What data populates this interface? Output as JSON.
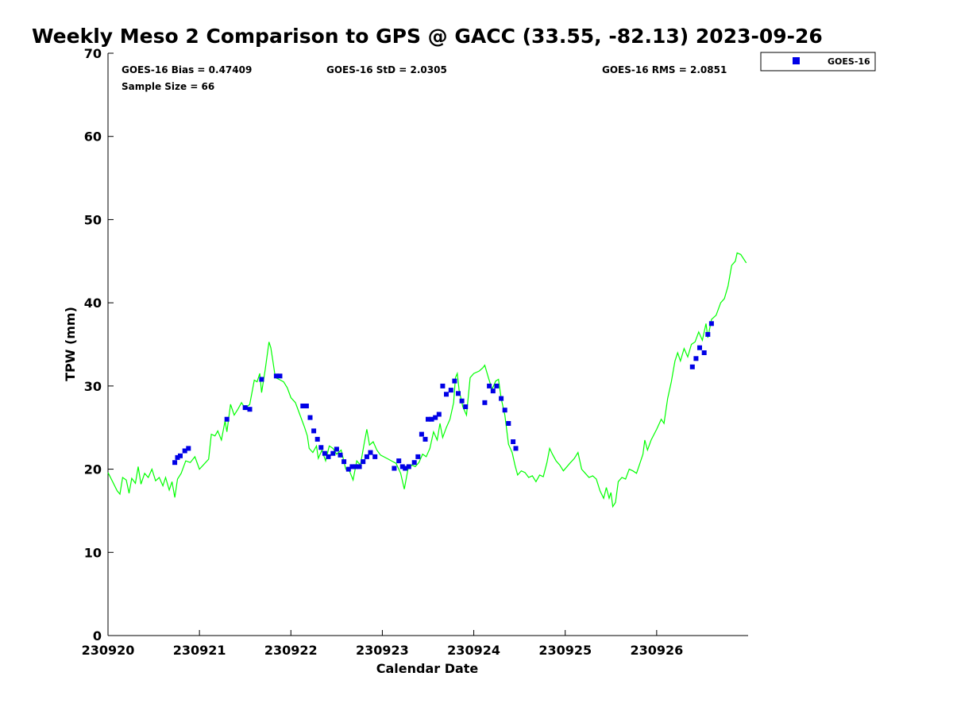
{
  "chart_data": {
    "type": "line",
    "title": "Weekly Meso 2 Comparison to GPS @ GACC (33.55, -82.13) 2023-09-26",
    "xlabel": "Calendar Date",
    "ylabel": "TPW (mm)",
    "ylim": [
      0,
      70
    ],
    "xlim": [
      "230920",
      "230927"
    ],
    "x_ticks": [
      "230920",
      "230921",
      "230922",
      "230923",
      "230924",
      "230925",
      "230926"
    ],
    "y_ticks": [
      0,
      10,
      20,
      30,
      40,
      50,
      60,
      70
    ],
    "grid": false,
    "legend_position": "top-right, outside",
    "stats": {
      "bias": "GOES-16 Bias = 0.47409",
      "std": "GOES-16 StD = 2.0305",
      "rms": "GOES-16 RMS = 2.0851",
      "sample": "Sample Size = 66"
    },
    "series": [
      {
        "kind": "line",
        "color": "#00ff00",
        "x_unit": "days after 2023-09-20 00:00 UTC",
        "points": [
          [
            0.0,
            19.6
          ],
          [
            0.05,
            18.5
          ],
          [
            0.1,
            17.4
          ],
          [
            0.13,
            17.0
          ],
          [
            0.16,
            19.0
          ],
          [
            0.2,
            18.7
          ],
          [
            0.23,
            17.1
          ],
          [
            0.26,
            18.9
          ],
          [
            0.3,
            18.3
          ],
          [
            0.33,
            20.3
          ],
          [
            0.36,
            18.2
          ],
          [
            0.4,
            19.5
          ],
          [
            0.44,
            19.0
          ],
          [
            0.48,
            20.0
          ],
          [
            0.52,
            18.6
          ],
          [
            0.56,
            19.0
          ],
          [
            0.6,
            18.0
          ],
          [
            0.63,
            19.0
          ],
          [
            0.67,
            17.5
          ],
          [
            0.7,
            18.5
          ],
          [
            0.73,
            16.6
          ],
          [
            0.76,
            18.8
          ],
          [
            0.8,
            19.5
          ],
          [
            0.85,
            21.0
          ],
          [
            0.9,
            20.8
          ],
          [
            0.95,
            21.5
          ],
          [
            1.0,
            20.0
          ],
          [
            1.05,
            20.6
          ],
          [
            1.1,
            21.2
          ],
          [
            1.13,
            24.2
          ],
          [
            1.17,
            24.0
          ],
          [
            1.2,
            24.6
          ],
          [
            1.24,
            23.5
          ],
          [
            1.28,
            25.8
          ],
          [
            1.3,
            24.5
          ],
          [
            1.34,
            27.8
          ],
          [
            1.38,
            26.5
          ],
          [
            1.42,
            27.2
          ],
          [
            1.46,
            28.0
          ],
          [
            1.5,
            27.3
          ],
          [
            1.55,
            27.8
          ],
          [
            1.6,
            30.7
          ],
          [
            1.63,
            30.5
          ],
          [
            1.66,
            31.5
          ],
          [
            1.68,
            29.2
          ],
          [
            1.72,
            32.0
          ],
          [
            1.76,
            35.3
          ],
          [
            1.78,
            34.6
          ],
          [
            1.8,
            33.2
          ],
          [
            1.83,
            31.0
          ],
          [
            1.87,
            30.8
          ],
          [
            1.92,
            30.5
          ],
          [
            1.96,
            29.8
          ],
          [
            2.0,
            28.6
          ],
          [
            2.05,
            28.0
          ],
          [
            2.1,
            26.5
          ],
          [
            2.15,
            25.0
          ],
          [
            2.18,
            24.0
          ],
          [
            2.2,
            22.5
          ],
          [
            2.24,
            22.0
          ],
          [
            2.28,
            22.8
          ],
          [
            2.3,
            21.3
          ],
          [
            2.34,
            22.3
          ],
          [
            2.38,
            21.0
          ],
          [
            2.42,
            22.8
          ],
          [
            2.46,
            22.5
          ],
          [
            2.5,
            21.8
          ],
          [
            2.55,
            22.3
          ],
          [
            2.6,
            20.0
          ],
          [
            2.64,
            19.8
          ],
          [
            2.68,
            18.7
          ],
          [
            2.72,
            21.0
          ],
          [
            2.76,
            20.5
          ],
          [
            2.8,
            23.0
          ],
          [
            2.83,
            24.8
          ],
          [
            2.86,
            22.9
          ],
          [
            2.9,
            23.3
          ],
          [
            2.94,
            22.3
          ],
          [
            2.98,
            21.7
          ],
          [
            3.05,
            21.3
          ],
          [
            3.1,
            21.0
          ],
          [
            3.15,
            20.7
          ],
          [
            3.2,
            19.5
          ],
          [
            3.24,
            17.6
          ],
          [
            3.28,
            20.0
          ],
          [
            3.32,
            20.5
          ],
          [
            3.36,
            20.3
          ],
          [
            3.4,
            20.8
          ],
          [
            3.44,
            21.8
          ],
          [
            3.48,
            21.5
          ],
          [
            3.52,
            22.5
          ],
          [
            3.56,
            24.5
          ],
          [
            3.6,
            23.5
          ],
          [
            3.63,
            25.5
          ],
          [
            3.66,
            23.8
          ],
          [
            3.7,
            25.0
          ],
          [
            3.74,
            26.0
          ],
          [
            3.78,
            28.0
          ],
          [
            3.8,
            31.0
          ],
          [
            3.82,
            31.5
          ],
          [
            3.84,
            29.5
          ],
          [
            3.88,
            27.5
          ],
          [
            3.92,
            26.5
          ],
          [
            3.96,
            31.0
          ],
          [
            4.0,
            31.5
          ],
          [
            4.06,
            31.8
          ],
          [
            4.1,
            32.2
          ],
          [
            4.12,
            32.5
          ],
          [
            4.16,
            31.0
          ],
          [
            4.2,
            29.6
          ],
          [
            4.24,
            30.6
          ],
          [
            4.27,
            30.8
          ],
          [
            4.3,
            28.5
          ],
          [
            4.34,
            26.5
          ],
          [
            4.38,
            23.0
          ],
          [
            4.42,
            22.0
          ],
          [
            4.45,
            20.5
          ],
          [
            4.48,
            19.3
          ],
          [
            4.52,
            19.8
          ],
          [
            4.56,
            19.6
          ],
          [
            4.6,
            19.0
          ],
          [
            4.64,
            19.2
          ],
          [
            4.68,
            18.5
          ],
          [
            4.72,
            19.3
          ],
          [
            4.76,
            19.1
          ],
          [
            4.8,
            20.8
          ],
          [
            4.83,
            22.5
          ],
          [
            4.86,
            21.8
          ],
          [
            4.9,
            21.0
          ],
          [
            4.94,
            20.5
          ],
          [
            4.98,
            19.8
          ],
          [
            5.05,
            20.7
          ],
          [
            5.1,
            21.3
          ],
          [
            5.14,
            22.0
          ],
          [
            5.18,
            20.0
          ],
          [
            5.22,
            19.5
          ],
          [
            5.26,
            19.0
          ],
          [
            5.3,
            19.2
          ],
          [
            5.34,
            18.8
          ],
          [
            5.38,
            17.4
          ],
          [
            5.42,
            16.5
          ],
          [
            5.45,
            17.8
          ],
          [
            5.48,
            16.5
          ],
          [
            5.5,
            17.2
          ],
          [
            5.52,
            15.5
          ],
          [
            5.55,
            16.0
          ],
          [
            5.58,
            18.5
          ],
          [
            5.62,
            19.0
          ],
          [
            5.66,
            18.8
          ],
          [
            5.7,
            20.0
          ],
          [
            5.74,
            19.8
          ],
          [
            5.78,
            19.5
          ],
          [
            5.82,
            20.8
          ],
          [
            5.85,
            21.8
          ],
          [
            5.87,
            23.5
          ],
          [
            5.9,
            22.3
          ],
          [
            5.94,
            23.5
          ],
          [
            6.0,
            24.8
          ],
          [
            6.05,
            26.0
          ],
          [
            6.08,
            25.5
          ],
          [
            6.12,
            28.5
          ],
          [
            6.16,
            30.5
          ],
          [
            6.2,
            33.0
          ],
          [
            6.23,
            34.0
          ],
          [
            6.26,
            33.0
          ],
          [
            6.3,
            34.5
          ],
          [
            6.34,
            33.5
          ],
          [
            6.38,
            35.0
          ],
          [
            6.42,
            35.3
          ],
          [
            6.46,
            36.5
          ],
          [
            6.5,
            35.5
          ],
          [
            6.54,
            37.5
          ],
          [
            6.56,
            35.8
          ],
          [
            6.6,
            38.0
          ],
          [
            6.65,
            38.5
          ],
          [
            6.7,
            40.0
          ],
          [
            6.74,
            40.5
          ],
          [
            6.78,
            42.0
          ],
          [
            6.82,
            44.5
          ],
          [
            6.86,
            45.0
          ],
          [
            6.88,
            46.0
          ],
          [
            6.92,
            45.8
          ],
          [
            6.98,
            44.8
          ]
        ]
      },
      {
        "kind": "scatter",
        "name": "GOES-16",
        "color": "#0000e6",
        "marker": "square",
        "x_unit": "days after 2023-09-20 00:00 UTC",
        "points": [
          [
            0.73,
            20.8
          ],
          [
            0.76,
            21.4
          ],
          [
            0.79,
            21.6
          ],
          [
            0.84,
            22.2
          ],
          [
            0.88,
            22.5
          ],
          [
            1.3,
            26.0
          ],
          [
            1.5,
            27.4
          ],
          [
            1.55,
            27.2
          ],
          [
            1.68,
            30.8
          ],
          [
            1.84,
            31.2
          ],
          [
            1.88,
            31.2
          ],
          [
            2.13,
            27.6
          ],
          [
            2.17,
            27.6
          ],
          [
            2.21,
            26.2
          ],
          [
            2.25,
            24.6
          ],
          [
            2.29,
            23.6
          ],
          [
            2.33,
            22.6
          ],
          [
            2.37,
            21.9
          ],
          [
            2.41,
            21.5
          ],
          [
            2.46,
            21.9
          ],
          [
            2.5,
            22.4
          ],
          [
            2.54,
            21.7
          ],
          [
            2.58,
            20.9
          ],
          [
            2.63,
            20.0
          ],
          [
            2.67,
            20.3
          ],
          [
            2.71,
            20.3
          ],
          [
            2.75,
            20.3
          ],
          [
            2.79,
            20.9
          ],
          [
            2.83,
            21.5
          ],
          [
            2.87,
            22.0
          ],
          [
            2.92,
            21.5
          ],
          [
            3.13,
            20.1
          ],
          [
            3.18,
            21.0
          ],
          [
            3.22,
            20.3
          ],
          [
            3.25,
            20.1
          ],
          [
            3.29,
            20.3
          ],
          [
            3.35,
            20.8
          ],
          [
            3.39,
            21.5
          ],
          [
            3.43,
            24.2
          ],
          [
            3.47,
            23.6
          ],
          [
            3.5,
            26.0
          ],
          [
            3.54,
            26.0
          ],
          [
            3.58,
            26.2
          ],
          [
            3.62,
            26.6
          ],
          [
            3.66,
            30.0
          ],
          [
            3.7,
            29.0
          ],
          [
            3.75,
            29.5
          ],
          [
            3.79,
            30.6
          ],
          [
            3.83,
            29.1
          ],
          [
            3.87,
            28.2
          ],
          [
            3.91,
            27.5
          ],
          [
            4.12,
            28.0
          ],
          [
            4.17,
            30.0
          ],
          [
            4.21,
            29.4
          ],
          [
            4.25,
            30.0
          ],
          [
            4.3,
            28.5
          ],
          [
            4.34,
            27.1
          ],
          [
            4.38,
            25.5
          ],
          [
            4.43,
            23.3
          ],
          [
            4.46,
            22.5
          ],
          [
            6.39,
            32.3
          ],
          [
            6.43,
            33.3
          ],
          [
            6.47,
            34.6
          ],
          [
            6.52,
            34.0
          ],
          [
            6.56,
            36.2
          ],
          [
            6.6,
            37.5
          ]
        ]
      }
    ]
  }
}
